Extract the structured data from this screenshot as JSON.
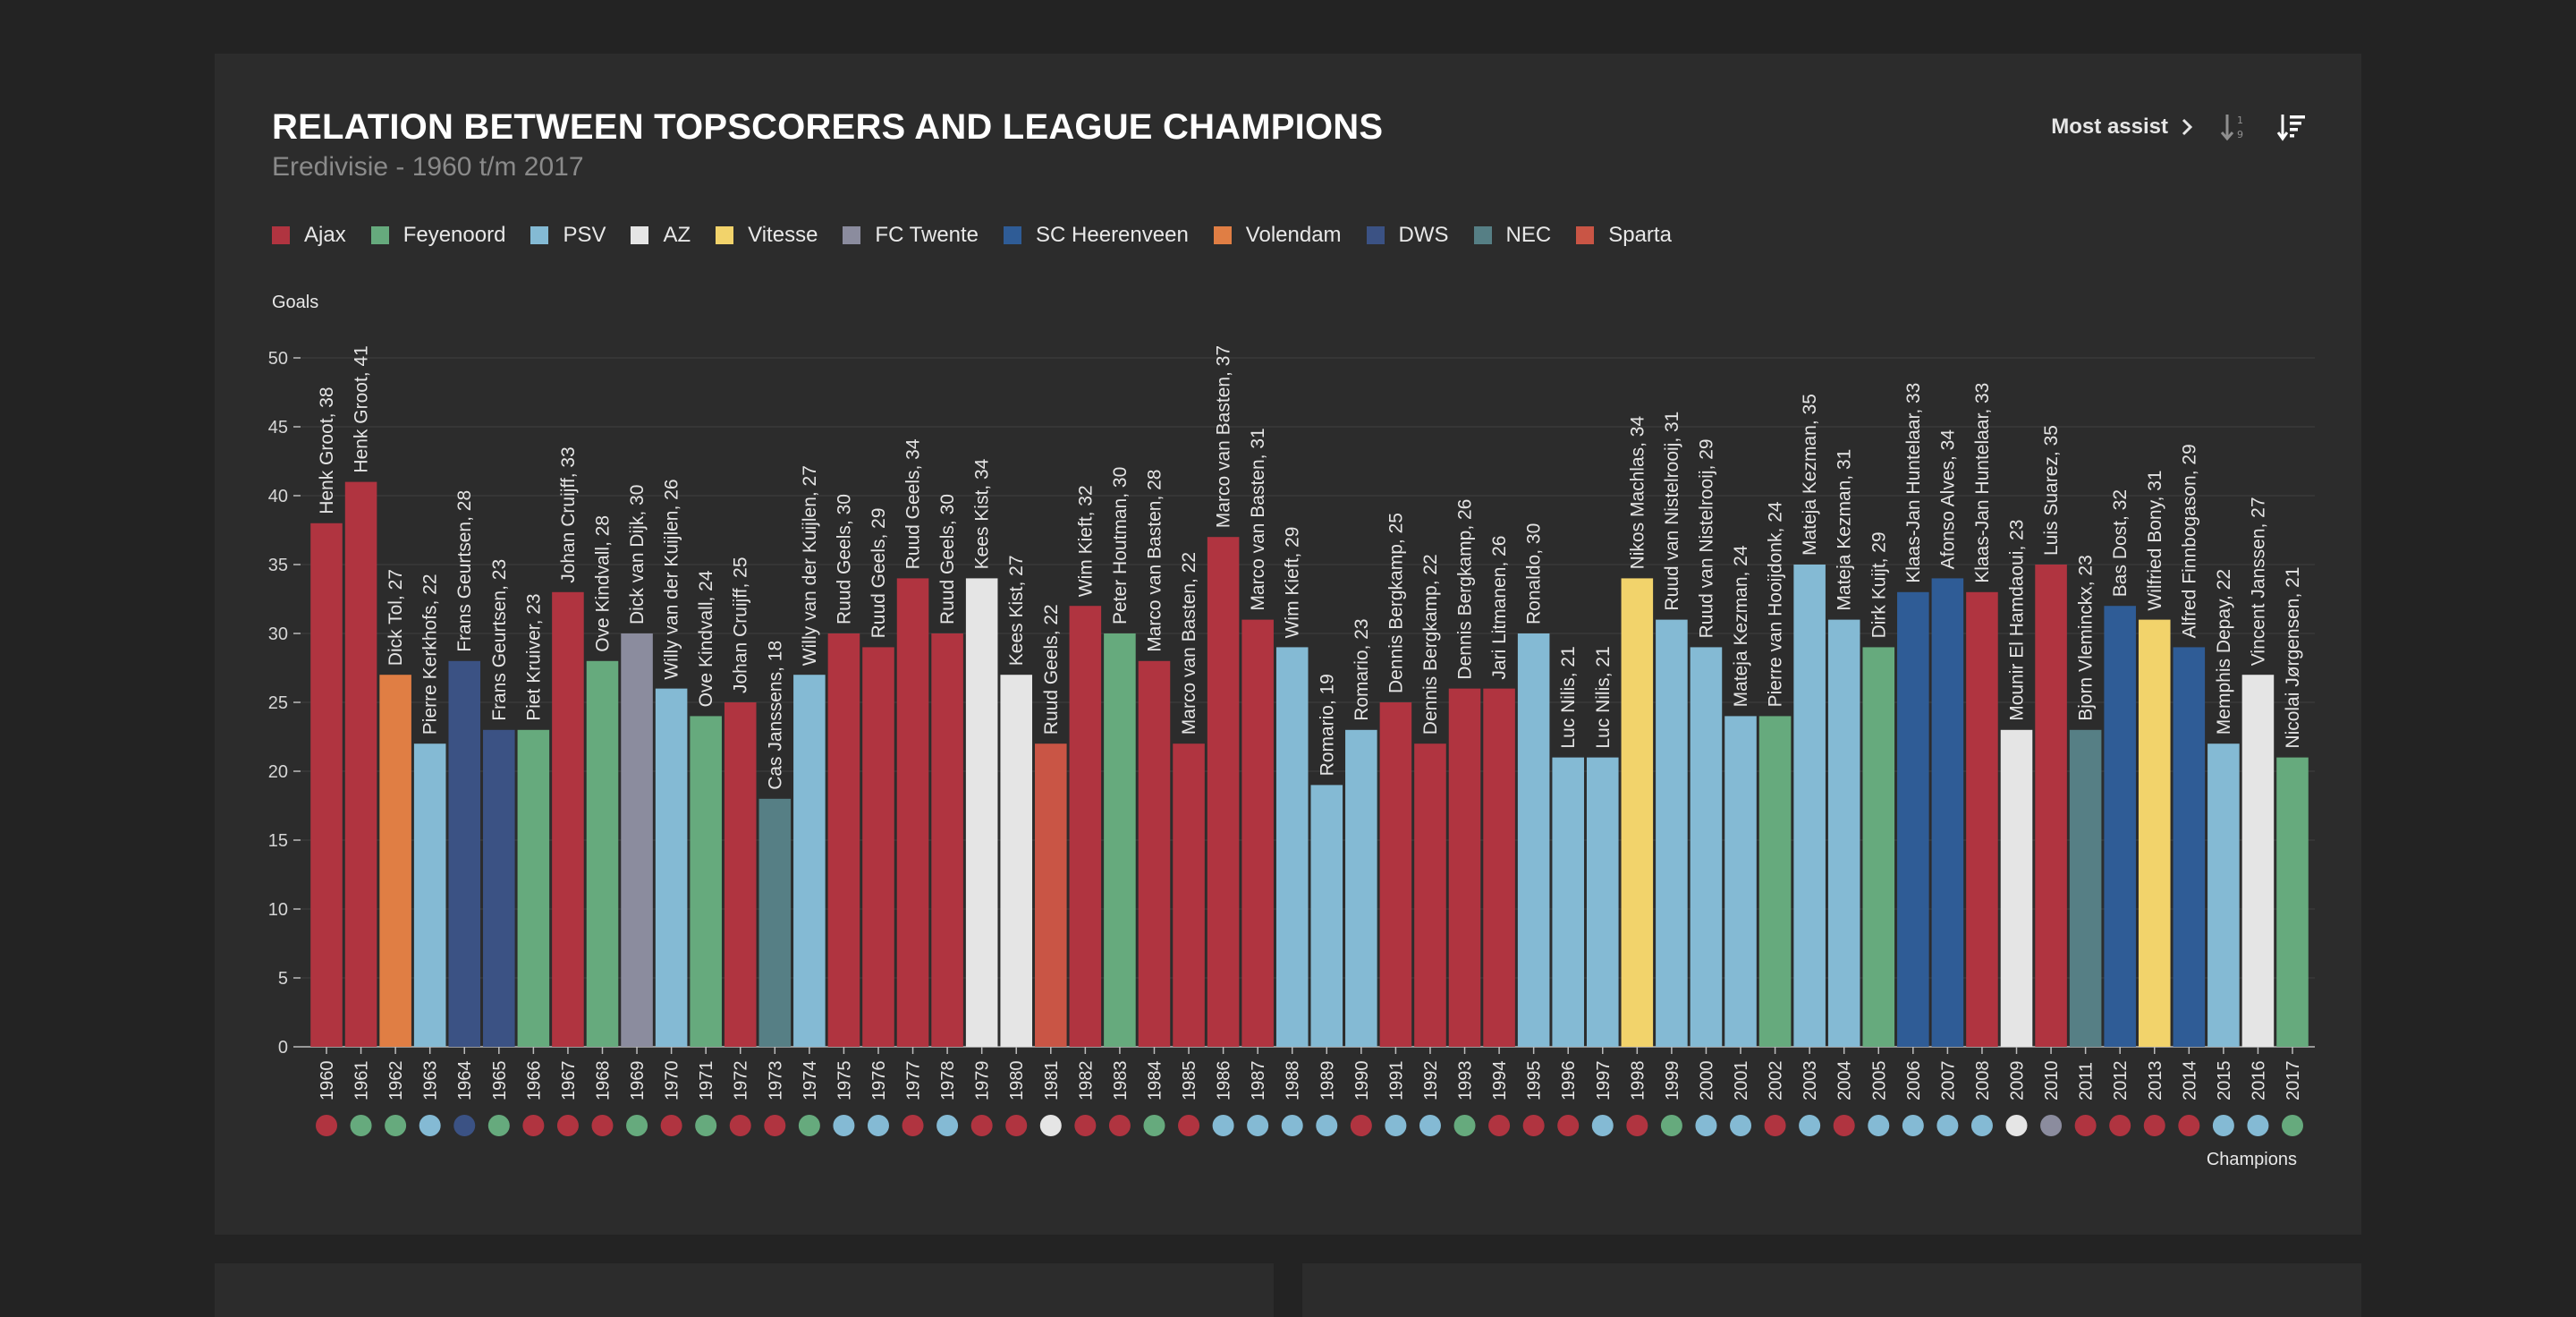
{
  "header": {
    "title": "RELATION BETWEEN TOPSCORERS AND LEAGUE CHAMPIONS",
    "subtitle": "Eredivisie - 1960 t/m 2017",
    "most_assist_label": "Most assist"
  },
  "icons": {
    "most_assist": "chevron-right-icon",
    "sort_asc": "sort-numeric-ascending-icon",
    "sort_desc": "sort-descending-icon"
  },
  "teams": [
    {
      "name": "Ajax",
      "color": "#b03440"
    },
    {
      "name": "Feyenoord",
      "color": "#66aa7d"
    },
    {
      "name": "PSV",
      "color": "#84bad4"
    },
    {
      "name": "AZ",
      "color": "#e5e5e5"
    },
    {
      "name": "Vitesse",
      "color": "#f2d36b"
    },
    {
      "name": "FC Twente",
      "color": "#8b8c9e"
    },
    {
      "name": "SC Heerenveen",
      "color": "#2f5c96"
    },
    {
      "name": "Volendam",
      "color": "#e07e44"
    },
    {
      "name": "DWS",
      "color": "#3b5284"
    },
    {
      "name": "NEC",
      "color": "#567f85"
    },
    {
      "name": "Sparta",
      "color": "#c95545"
    }
  ],
  "chart_data": {
    "type": "bar",
    "ylabel": "Goals",
    "xlabel": "Champions",
    "ylim": [
      0,
      50
    ],
    "yticks": [
      0,
      5,
      10,
      15,
      20,
      25,
      30,
      35,
      40,
      45,
      50
    ],
    "grid": true,
    "bars": [
      {
        "year": "1960",
        "player": "Henk Groot",
        "goals": 38,
        "team": "Ajax",
        "champion": "Ajax"
      },
      {
        "year": "1961",
        "player": "Henk Groot",
        "goals": 41,
        "team": "Ajax",
        "champion": "Feyenoord"
      },
      {
        "year": "1962",
        "player": "Dick Tol",
        "goals": 27,
        "team": "Volendam",
        "champion": "Feyenoord"
      },
      {
        "year": "1963",
        "player": "Pierre Kerkhofs",
        "goals": 22,
        "team": "PSV",
        "champion": "PSV"
      },
      {
        "year": "1964",
        "player": "Frans Geurtsen",
        "goals": 28,
        "team": "DWS",
        "champion": "DWS"
      },
      {
        "year": "1965",
        "player": "Frans Geurtsen",
        "goals": 23,
        "team": "DWS",
        "champion": "Feyenoord"
      },
      {
        "year": "1966",
        "player": "Piet Kruiver",
        "goals": 23,
        "team": "Feyenoord",
        "champion": "Ajax"
      },
      {
        "year": "1967",
        "player": "Johan Cruijff",
        "goals": 33,
        "team": "Ajax",
        "champion": "Ajax"
      },
      {
        "year": "1968",
        "player": "Ove Kindvall",
        "goals": 28,
        "team": "Feyenoord",
        "champion": "Ajax"
      },
      {
        "year": "1969",
        "player": "Dick van Dijk",
        "goals": 30,
        "team": "FC Twente",
        "champion": "Feyenoord"
      },
      {
        "year": "1970",
        "player": "Willy van der Kuijlen",
        "goals": 26,
        "team": "PSV",
        "champion": "Ajax"
      },
      {
        "year": "1971",
        "player": "Ove Kindvall",
        "goals": 24,
        "team": "Feyenoord",
        "champion": "Feyenoord"
      },
      {
        "year": "1972",
        "player": "Johan Cruijff",
        "goals": 25,
        "team": "Ajax",
        "champion": "Ajax"
      },
      {
        "year": "1973",
        "player": "Cas Janssens",
        "goals": 18,
        "team": "NEC",
        "champion": "Ajax"
      },
      {
        "year": "1974",
        "player": "Willy van der Kuijlen",
        "goals": 27,
        "team": "PSV",
        "champion": "Feyenoord"
      },
      {
        "year": "1975",
        "player": "Ruud Geels",
        "goals": 30,
        "team": "Ajax",
        "champion": "PSV"
      },
      {
        "year": "1976",
        "player": "Ruud Geels",
        "goals": 29,
        "team": "Ajax",
        "champion": "PSV"
      },
      {
        "year": "1977",
        "player": "Ruud Geels",
        "goals": 34,
        "team": "Ajax",
        "champion": "Ajax"
      },
      {
        "year": "1978",
        "player": "Ruud Geels",
        "goals": 30,
        "team": "Ajax",
        "champion": "PSV"
      },
      {
        "year": "1979",
        "player": "Kees Kist",
        "goals": 34,
        "team": "AZ",
        "champion": "Ajax"
      },
      {
        "year": "1980",
        "player": "Kees Kist",
        "goals": 27,
        "team": "AZ",
        "champion": "Ajax"
      },
      {
        "year": "1981",
        "player": "Ruud Geels",
        "goals": 22,
        "team": "Sparta",
        "champion": "AZ"
      },
      {
        "year": "1982",
        "player": "Wim Kieft",
        "goals": 32,
        "team": "Ajax",
        "champion": "Ajax"
      },
      {
        "year": "1983",
        "player": "Peter Houtman",
        "goals": 30,
        "team": "Feyenoord",
        "champion": "Ajax"
      },
      {
        "year": "1984",
        "player": "Marco van Basten",
        "goals": 28,
        "team": "Ajax",
        "champion": "Feyenoord"
      },
      {
        "year": "1985",
        "player": "Marco van Basten",
        "goals": 22,
        "team": "Ajax",
        "champion": "Ajax"
      },
      {
        "year": "1986",
        "player": "Marco van Basten",
        "goals": 37,
        "team": "Ajax",
        "champion": "PSV"
      },
      {
        "year": "1987",
        "player": "Marco van Basten",
        "goals": 31,
        "team": "Ajax",
        "champion": "PSV"
      },
      {
        "year": "1988",
        "player": "Wim Kieft",
        "goals": 29,
        "team": "PSV",
        "champion": "PSV"
      },
      {
        "year": "1989",
        "player": "Romario",
        "goals": 19,
        "team": "PSV",
        "champion": "PSV"
      },
      {
        "year": "1990",
        "player": "Romario",
        "goals": 23,
        "team": "PSV",
        "champion": "Ajax"
      },
      {
        "year": "1991",
        "player": "Dennis Bergkamp",
        "goals": 25,
        "team": "Ajax",
        "champion": "PSV"
      },
      {
        "year": "1992",
        "player": "Dennis Bergkamp",
        "goals": 22,
        "team": "Ajax",
        "champion": "PSV"
      },
      {
        "year": "1993",
        "player": "Dennis Bergkamp",
        "goals": 26,
        "team": "Ajax",
        "champion": "Feyenoord"
      },
      {
        "year": "1994",
        "player": "Jari Litmanen",
        "goals": 26,
        "team": "Ajax",
        "champion": "Ajax"
      },
      {
        "year": "1995",
        "player": "Ronaldo",
        "goals": 30,
        "team": "PSV",
        "champion": "Ajax"
      },
      {
        "year": "1996",
        "player": "Luc Nilis",
        "goals": 21,
        "team": "PSV",
        "champion": "Ajax"
      },
      {
        "year": "1997",
        "player": "Luc Nilis",
        "goals": 21,
        "team": "PSV",
        "champion": "PSV"
      },
      {
        "year": "1998",
        "player": "Nikos Machlas",
        "goals": 34,
        "team": "Vitesse",
        "champion": "Ajax"
      },
      {
        "year": "1999",
        "player": "Ruud van Nistelrooij",
        "goals": 31,
        "team": "PSV",
        "champion": "Feyenoord"
      },
      {
        "year": "2000",
        "player": "Ruud van Nistelrooij",
        "goals": 29,
        "team": "PSV",
        "champion": "PSV"
      },
      {
        "year": "2001",
        "player": "Mateja Kezman",
        "goals": 24,
        "team": "PSV",
        "champion": "PSV"
      },
      {
        "year": "2002",
        "player": "Pierre van Hooijdonk",
        "goals": 24,
        "team": "Feyenoord",
        "champion": "Ajax"
      },
      {
        "year": "2003",
        "player": "Mateja Kezman",
        "goals": 35,
        "team": "PSV",
        "champion": "PSV"
      },
      {
        "year": "2004",
        "player": "Mateja Kezman",
        "goals": 31,
        "team": "PSV",
        "champion": "Ajax"
      },
      {
        "year": "2005",
        "player": "Dirk Kuijt",
        "goals": 29,
        "team": "Feyenoord",
        "champion": "PSV"
      },
      {
        "year": "2006",
        "player": "Klaas-Jan Huntelaar",
        "goals": 33,
        "team": "SC Heerenveen",
        "champion": "PSV"
      },
      {
        "year": "2007",
        "player": "Afonso Alves",
        "goals": 34,
        "team": "SC Heerenveen",
        "champion": "PSV"
      },
      {
        "year": "2008",
        "player": "Klaas-Jan Huntelaar",
        "goals": 33,
        "team": "Ajax",
        "champion": "PSV"
      },
      {
        "year": "2009",
        "player": "Mounir El Hamdaoui",
        "goals": 23,
        "team": "AZ",
        "champion": "AZ"
      },
      {
        "year": "2010",
        "player": "Luis Suarez",
        "goals": 35,
        "team": "Ajax",
        "champion": "FC Twente"
      },
      {
        "year": "2011",
        "player": "Bjorn Vleminckx",
        "goals": 23,
        "team": "NEC",
        "champion": "Ajax"
      },
      {
        "year": "2012",
        "player": "Bas Dost",
        "goals": 32,
        "team": "SC Heerenveen",
        "champion": "Ajax"
      },
      {
        "year": "2013",
        "player": "Wilfried Bony",
        "goals": 31,
        "team": "Vitesse",
        "champion": "Ajax"
      },
      {
        "year": "2014",
        "player": "Alfred Finnbogason",
        "goals": 29,
        "team": "SC Heerenveen",
        "champion": "Ajax"
      },
      {
        "year": "2015",
        "player": "Memphis Depay",
        "goals": 22,
        "team": "PSV",
        "champion": "PSV"
      },
      {
        "year": "2016",
        "player": "Vincent Janssen",
        "goals": 27,
        "team": "AZ",
        "champion": "PSV"
      },
      {
        "year": "2017",
        "player": "Nicolai Jørgensen",
        "goals": 21,
        "team": "Feyenoord",
        "champion": "Feyenoord"
      }
    ]
  }
}
